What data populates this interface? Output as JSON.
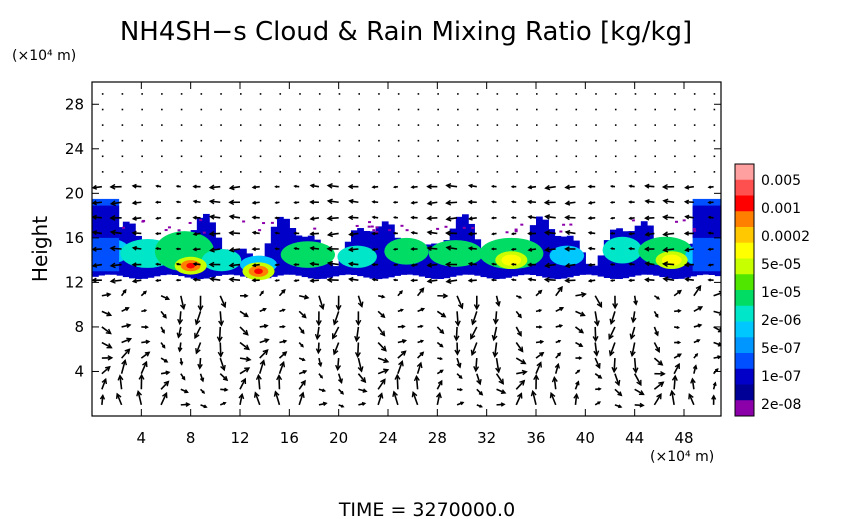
{
  "chart_data": {
    "type": "heatmap",
    "title": "NH4SH−s Cloud & Rain Mixing Ratio [kg/kg]",
    "ylabel": "Height",
    "x_unit": "(×10⁴ m)",
    "y_unit": "(×10⁴ m)",
    "xlim": [
      0,
      51
    ],
    "ylim": [
      0,
      30
    ],
    "x_ticks": [
      4,
      8,
      12,
      16,
      20,
      24,
      28,
      32,
      36,
      40,
      44,
      48
    ],
    "y_ticks": [
      4,
      8,
      12,
      16,
      20,
      24,
      28
    ],
    "colorbar": {
      "labels": [
        "0.005",
        "0.001",
        "0.0002",
        "5e-05",
        "1e-05",
        "2e-06",
        "5e-07",
        "1e-07",
        "2e-08"
      ],
      "colors": [
        "#ffa0a0",
        "#ff5050",
        "#ff0000",
        "#ff8000",
        "#ffc800",
        "#ffff00",
        "#c8ff00",
        "#50e600",
        "#00dc64",
        "#00e6c8",
        "#00c8ff",
        "#0096ff",
        "#0050ff",
        "#0000c8",
        "#000096",
        "#8c00aa"
      ]
    },
    "cloud_layer": {
      "base_height": 12.5,
      "top_height": 17,
      "edge_top_height": 19.5,
      "peak_regions": [
        {
          "x": 8,
          "height": 13.5,
          "level": "0.0002"
        },
        {
          "x": 13.5,
          "height": 13,
          "level": "0.0002"
        },
        {
          "x": 34,
          "height": 14,
          "level": "5e-05"
        },
        {
          "x": 47,
          "height": 14,
          "level": "5e-05"
        }
      ]
    },
    "vector_field": "wind arrows"
  },
  "footer": {
    "time_label": "TIME  =  3270000.0"
  }
}
